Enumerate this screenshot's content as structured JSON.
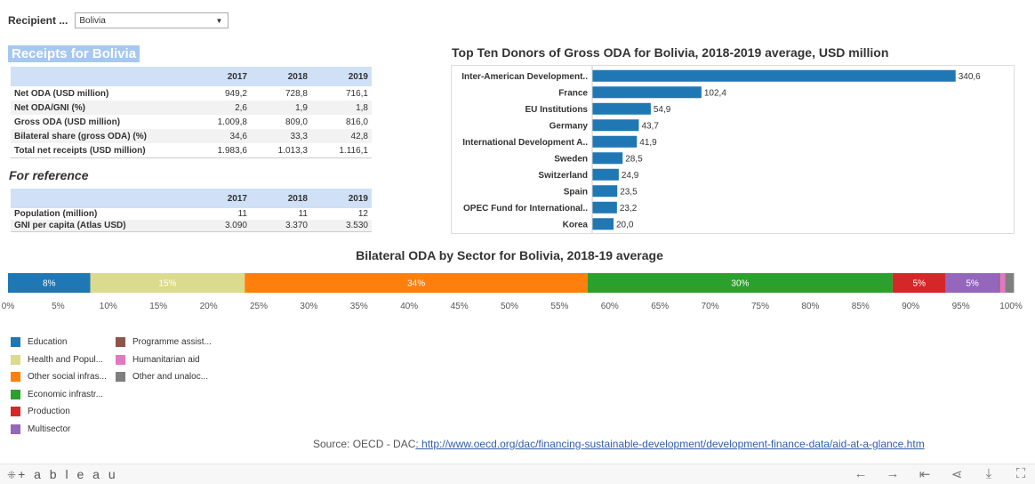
{
  "filter": {
    "label": "Recipient ...",
    "value": "Bolivia"
  },
  "receipts": {
    "title": "Receipts for Bolivia",
    "columns": [
      "2017",
      "2018",
      "2019"
    ],
    "rows": [
      {
        "label": "Net ODA (USD million)",
        "values": [
          "949,2",
          "728,8",
          "716,1"
        ]
      },
      {
        "label": "Net ODA/GNI (%)",
        "values": [
          "2,6",
          "1,9",
          "1,8"
        ]
      },
      {
        "label": "Gross ODA (USD million)",
        "values": [
          "1.009,8",
          "809,0",
          "816,0"
        ]
      },
      {
        "label": "Bilateral share (gross ODA) (%)",
        "values": [
          "34,6",
          "33,3",
          "42,8"
        ]
      },
      {
        "label": "Total net receipts (USD million)",
        "values": [
          "1.983,6",
          "1.013,3",
          "1.116,1"
        ]
      }
    ]
  },
  "reference": {
    "title": "For reference",
    "columns": [
      "2017",
      "2018",
      "2019"
    ],
    "rows": [
      {
        "label": "Population (million)",
        "values": [
          "11",
          "11",
          "12"
        ]
      },
      {
        "label": "GNI per capita (Atlas USD)",
        "values": [
          "3.090",
          "3.370",
          "3.530"
        ]
      }
    ]
  },
  "colors": {
    "bar": "#1f77b4",
    "header_bg": "#cfe0f7",
    "title_bg": "#a6c8f0",
    "link": "#2f5fa8"
  },
  "chart_data": [
    {
      "type": "bar",
      "orientation": "horizontal",
      "title": "Top Ten Donors of Gross ODA for Bolivia, 2018-2019 average, USD million",
      "categories": [
        "Inter-American Development..",
        "France",
        "EU Institutions",
        "Germany",
        "International Development A..",
        "Sweden",
        "Switzerland",
        "Spain",
        "OPEC Fund for International..",
        "Korea"
      ],
      "values": [
        340.6,
        102.4,
        54.9,
        43.7,
        41.9,
        28.5,
        24.9,
        23.5,
        23.2,
        20.0
      ],
      "value_labels": [
        "340,6",
        "102,4",
        "54,9",
        "43,7",
        "41,9",
        "28,5",
        "24,9",
        "23,5",
        "23,2",
        "20,0"
      ],
      "xlim": [
        0,
        350
      ],
      "grid": false
    },
    {
      "type": "bar",
      "orientation": "horizontal",
      "stacked": true,
      "title": "Bilateral ODA by Sector for Bolivia, 2018-19 average",
      "series": [
        {
          "name": "Education",
          "value": 8.2,
          "label": "8%",
          "color": "#1f77b4"
        },
        {
          "name": "Health and Popul...",
          "value": 15.4,
          "label": "15%",
          "color": "#dbdb8d"
        },
        {
          "name": "Other social infras...",
          "value": 34.2,
          "label": "34%",
          "color": "#ff7f0e"
        },
        {
          "name": "Economic infrastr...",
          "value": 30.4,
          "label": "30%",
          "color": "#2ca02c"
        },
        {
          "name": "Production",
          "value": 5.3,
          "label": "5%",
          "color": "#d62728"
        },
        {
          "name": "Multisector",
          "value": 5.3,
          "label": "5%",
          "color": "#9467bd"
        },
        {
          "name": "Programme assist...",
          "value": 0.1,
          "label": "",
          "color": "#8c564b"
        },
        {
          "name": "Humanitarian aid",
          "value": 0.5,
          "label": "",
          "color": "#e377c2"
        },
        {
          "name": "Other and unaloc...",
          "value": 0.9,
          "label": "",
          "color": "#7f7f7f"
        }
      ],
      "xlim": [
        0,
        100
      ],
      "xticks": [
        "0%",
        "5%",
        "10%",
        "15%",
        "20%",
        "25%",
        "30%",
        "35%",
        "40%",
        "45%",
        "50%",
        "55%",
        "60%",
        "65%",
        "70%",
        "75%",
        "80%",
        "85%",
        "90%",
        "95%",
        "100%"
      ],
      "legend_position": "bottom-left"
    }
  ],
  "legend": {
    "col1": [
      "Education",
      "Health and Popul...",
      "Other social infras...",
      "Economic infrastr...",
      "Production",
      "Multisector"
    ],
    "col2": [
      "Programme assist...",
      "Humanitarian aid",
      "Other and unaloc..."
    ]
  },
  "source": {
    "text": "Source: OECD - DAC",
    "link": ": http://www.oecd.org/dac/financing-sustainable-development/development-finance-data/aid-at-a-glance.htm"
  },
  "footer": {
    "logo": "tableau",
    "icons": [
      "undo-icon",
      "redo-icon",
      "revert-icon",
      "share-icon",
      "download-icon",
      "fullscreen-icon"
    ]
  }
}
